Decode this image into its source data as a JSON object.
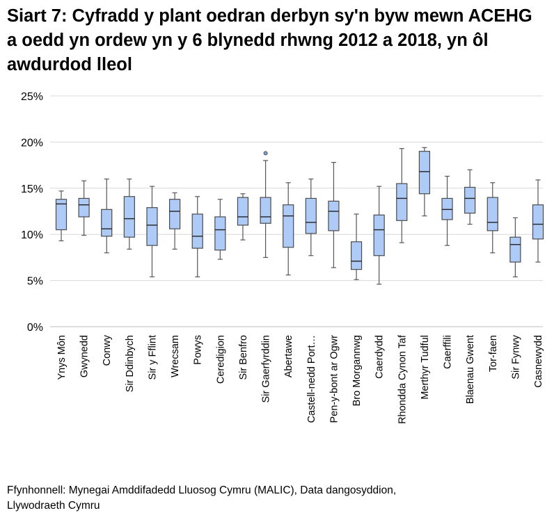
{
  "title": "Siart 7: Cyfradd y plant oedran derbyn sy'n byw mewn ACEHG a oedd yn ordew yn y 6 blynedd rhwng 2012 a 2018, yn ôl awdurdod lleol",
  "source_lines": [
    "Ffynhonnell: Mynegai Amddifadedd Lluosog Cymru (MALIC), Data dangosyddion,",
    "Llywodraeth Cymru"
  ],
  "colors": {
    "box_fill": "#aecbf7",
    "box_stroke": "#4a4a4a",
    "whisker": "#555555",
    "grid": "#d9d9d9",
    "outlier": "#7a9cc6"
  },
  "chart_data": {
    "type": "boxplot",
    "ylim": [
      0,
      25
    ],
    "yticks": [
      0,
      5,
      10,
      15,
      20,
      25
    ],
    "ytick_labels": [
      "0%",
      "5%",
      "10%",
      "15%",
      "20%",
      "25%"
    ],
    "grid": true,
    "unit": "%",
    "categories": [
      "Ynys Môn",
      "Gwynedd",
      "Conwy",
      "Sir Ddinbych",
      "Sir y Fflint",
      "Wrecsam",
      "Powys",
      "Ceredigion",
      "Sir Benfro",
      "Sir Gaerfyrddin",
      "Abertawe",
      "Castell-nedd Port…",
      "Pen-y-bont ar Ogwr",
      "Bro Morgannwg",
      "Caerdydd",
      "Rhondda Cynon Taf",
      "Merthyr Tudful",
      "Caerffili",
      "Blaenau Gwent",
      "Tor-faen",
      "Sir Fynwy",
      "Casnewydd"
    ],
    "boxes": [
      {
        "min": 9.3,
        "q1": 10.5,
        "median": 13.3,
        "q3": 13.8,
        "max": 14.7
      },
      {
        "min": 9.9,
        "q1": 11.9,
        "median": 13.2,
        "q3": 13.9,
        "max": 15.8
      },
      {
        "min": 8.0,
        "q1": 9.8,
        "median": 10.6,
        "q3": 12.7,
        "max": 16.0
      },
      {
        "min": 8.4,
        "q1": 9.7,
        "median": 11.7,
        "q3": 14.1,
        "max": 16.0
      },
      {
        "min": 5.4,
        "q1": 8.8,
        "median": 11.0,
        "q3": 12.9,
        "max": 15.2
      },
      {
        "min": 8.4,
        "q1": 10.6,
        "median": 12.5,
        "q3": 13.8,
        "max": 14.5
      },
      {
        "min": 5.4,
        "q1": 8.5,
        "median": 9.8,
        "q3": 12.2,
        "max": 14.1
      },
      {
        "min": 7.3,
        "q1": 8.3,
        "median": 10.5,
        "q3": 11.9,
        "max": 13.8
      },
      {
        "min": 9.4,
        "q1": 11.0,
        "median": 11.9,
        "q3": 14.0,
        "max": 14.4
      },
      {
        "min": 7.5,
        "q1": 11.2,
        "median": 11.9,
        "q3": 14.0,
        "max": 18.0,
        "outliers": [
          18.8
        ]
      },
      {
        "min": 5.6,
        "q1": 8.6,
        "median": 12.0,
        "q3": 13.2,
        "max": 15.6
      },
      {
        "min": 7.7,
        "q1": 10.1,
        "median": 11.3,
        "q3": 13.9,
        "max": 16.0
      },
      {
        "min": 6.4,
        "q1": 10.4,
        "median": 12.5,
        "q3": 13.6,
        "max": 17.8
      },
      {
        "min": 5.1,
        "q1": 6.2,
        "median": 7.1,
        "q3": 9.2,
        "max": 12.2
      },
      {
        "min": 4.6,
        "q1": 7.7,
        "median": 10.5,
        "q3": 12.1,
        "max": 15.2
      },
      {
        "min": 9.1,
        "q1": 11.5,
        "median": 13.9,
        "q3": 15.5,
        "max": 19.3
      },
      {
        "min": 12.0,
        "q1": 14.4,
        "median": 16.8,
        "q3": 19.0,
        "max": 19.4
      },
      {
        "min": 8.8,
        "q1": 11.6,
        "median": 12.7,
        "q3": 13.9,
        "max": 16.3
      },
      {
        "min": 11.1,
        "q1": 12.3,
        "median": 13.9,
        "q3": 15.1,
        "max": 17.0
      },
      {
        "min": 8.0,
        "q1": 10.4,
        "median": 11.3,
        "q3": 14.0,
        "max": 15.6
      },
      {
        "min": 5.4,
        "q1": 7.0,
        "median": 8.9,
        "q3": 9.7,
        "max": 11.8
      },
      {
        "min": 7.0,
        "q1": 9.5,
        "median": 11.1,
        "q3": 13.2,
        "max": 15.9
      }
    ]
  }
}
